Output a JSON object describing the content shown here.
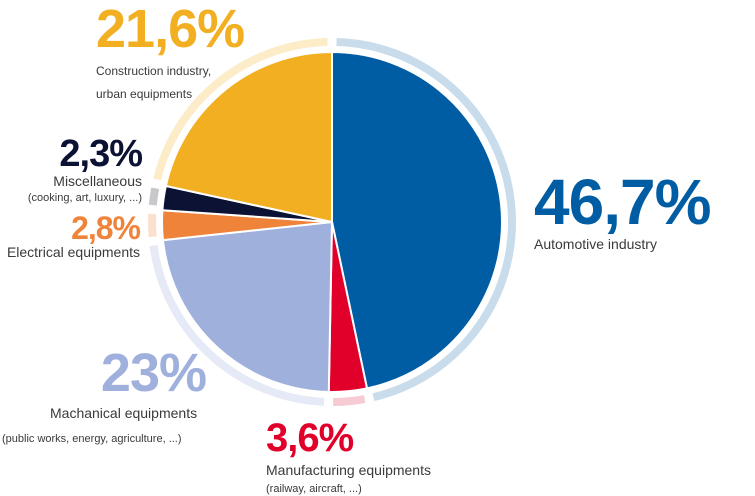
{
  "chart_data": {
    "type": "pie",
    "title": "",
    "slices": [
      {
        "percent_label": "46,7%",
        "value": 46.7,
        "name": "Automotive industry",
        "sub": "",
        "color": "#005ca3",
        "ring_color": "#c9dcec"
      },
      {
        "percent_label": "3,6%",
        "value": 3.6,
        "name": "Manufacturing equipments",
        "sub": "(railway, aircraft, ...)",
        "color": "#e1002a",
        "ring_color": "#f6cbd3"
      },
      {
        "percent_label": "23%",
        "value": 23,
        "name": "Machanical equipments",
        "sub": "(public works, energy, agriculture, ...)",
        "color": "#9fb0dd",
        "ring_color": "#e6eaf6"
      },
      {
        "percent_label": "2,8%",
        "value": 2.8,
        "name": "Electrical equipments",
        "sub": "",
        "color": "#f0833a",
        "ring_color": "#fbe0cd"
      },
      {
        "percent_label": "2,3%",
        "value": 2.3,
        "name": "Miscellaneous",
        "sub": "(cooking, art, luxury, ...)",
        "color": "#0c1233",
        "ring_color": "#c8c8cc"
      },
      {
        "percent_label": "21,6%",
        "value": 21.6,
        "name": "Construction industry,",
        "name2": "urban equipments",
        "sub": "",
        "color": "#f2af22",
        "ring_color": "#fcecc8"
      }
    ]
  }
}
